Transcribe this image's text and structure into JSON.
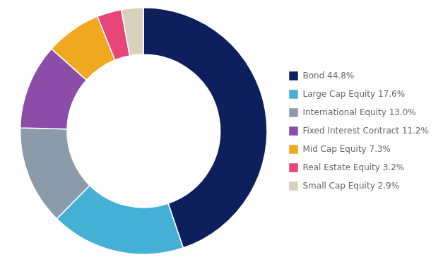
{
  "chart_data": {
    "type": "donut",
    "categories": [
      "Bond 44.8%",
      "Large Cap Equity 17.6%",
      "International Equity 13.0%",
      "Fixed Interest Contract 11.2%",
      "Mid Cap Equity 7.3%",
      "Real Estate Equity 3.2%",
      "Small Cap Equity 2.9%"
    ],
    "values": [
      44.8,
      17.6,
      13.0,
      11.2,
      7.3,
      3.2,
      2.9
    ],
    "colors": [
      "#0d1f5c",
      "#45b0d5",
      "#8c9bab",
      "#8b4da8",
      "#f0a820",
      "#e8457a",
      "#d9d0be"
    ],
    "legend": "right"
  }
}
